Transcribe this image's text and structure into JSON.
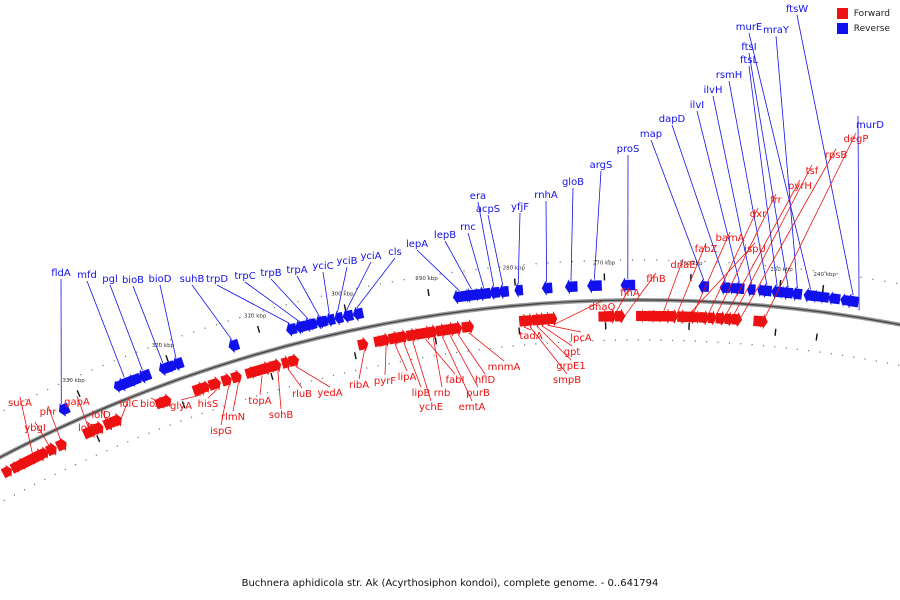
{
  "legend": {
    "forward_label": "Forward",
    "reverse_label": "Reverse",
    "forward_color": "#ee1111",
    "reverse_color": "#1111ee"
  },
  "caption": "Buchnera aphidicola str. Ak (Acyrthosiphon kondoi), complete genome. - 0..641794",
  "ticks": [
    "240 kbp",
    "250 kbp",
    "260 kbp",
    "270 kbp",
    "280 kbp",
    "290 kbp",
    "300 kbp",
    "310 kbp",
    "320 kbp",
    "330 kbp"
  ],
  "reverse_genes": [
    "ftsW",
    "murE",
    "mraY",
    "ftsI",
    "ftsL",
    "rsmH",
    "ilvH",
    "ilvI",
    "dapD",
    "map",
    "proS",
    "argS",
    "gloB",
    "rnhA",
    "yfjF",
    "acpS",
    "era",
    "rnc",
    "lepB",
    "lepA",
    "cls",
    "yciA",
    "yciB",
    "yciC",
    "trpA",
    "trpB",
    "trpC",
    "trpD",
    "suhB",
    "bioD",
    "bioB",
    "pgl",
    "mfd",
    "fldA",
    "murD"
  ],
  "forward_genes": [
    "degP",
    "rpsB",
    "tsf",
    "pyrH",
    "frr",
    "dxr",
    "bamA",
    "ispU",
    "fabZ",
    "dnaE",
    "flhB",
    "flhA",
    "dnaQ",
    "lpcA",
    "gpt",
    "grpE1",
    "smpB",
    "tadA",
    "mnmA",
    "hflD",
    "purB",
    "emtA",
    "rnb",
    "fabI",
    "ychE",
    "lipB",
    "lipA",
    "pyrF",
    "ribA",
    "yedA",
    "rluB",
    "sohB",
    "topA",
    "rlmN",
    "ispG",
    "hisS",
    "glyA",
    "bioA",
    "lolC",
    "lolD",
    "lolE",
    "gapA",
    "phr",
    "ybgI",
    "sucA"
  ]
}
